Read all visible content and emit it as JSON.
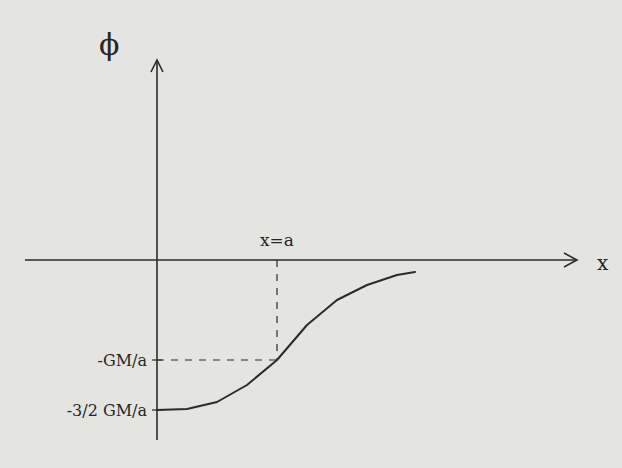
{
  "chart_data": {
    "type": "line",
    "x_label": "x",
    "y_label": "ϕ",
    "x": [
      0,
      0.25,
      0.5,
      0.75,
      1,
      1.25,
      1.5,
      1.75,
      2,
      2.15
    ],
    "values": [
      -1.5,
      -1.49,
      -1.42,
      -1.25,
      -1.0,
      -0.65,
      -0.4,
      -0.25,
      -0.15,
      -0.12
    ],
    "color": "#2b2b2b",
    "marker": "none",
    "line_style": "solid",
    "grid": false,
    "xlim": [
      -1.1,
      3.5
    ],
    "ylim": [
      -1.8,
      2
    ],
    "xticks": [
      {
        "value": 1,
        "label": "x=a"
      }
    ],
    "yticks": [
      {
        "value": -1,
        "label": "-GM/a"
      },
      {
        "value": -1.5,
        "label": "-3/2 GM/a"
      }
    ]
  }
}
